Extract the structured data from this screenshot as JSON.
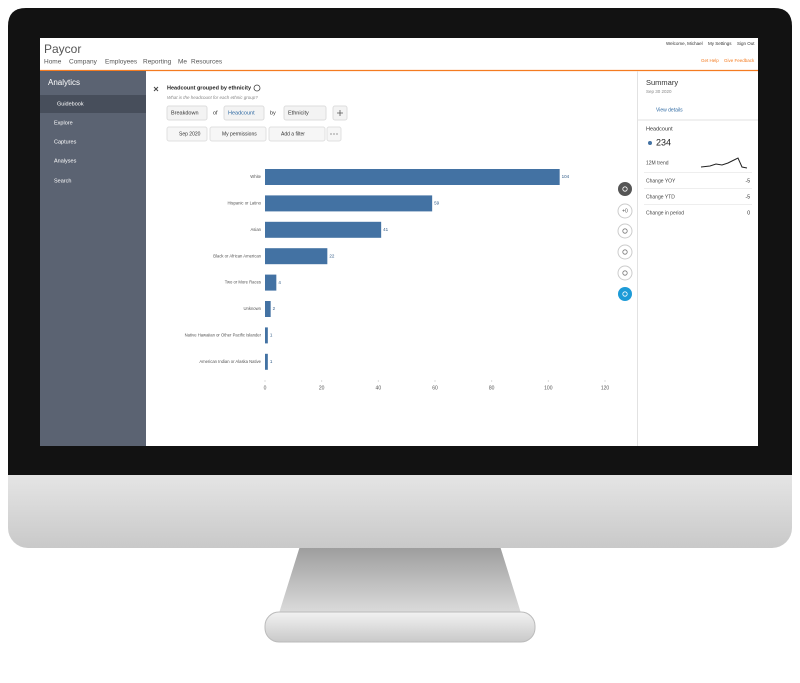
{
  "header": {
    "logo": "Paycor",
    "nav": [
      "Home",
      "Company",
      "Employees",
      "Reporting",
      "Me",
      "Resources"
    ],
    "user_links": [
      "Welcome, Michael",
      "My Settings",
      "Sign Out"
    ],
    "help_links": [
      "Get Help",
      "Give Feedback"
    ]
  },
  "sidebar": {
    "title": "Analytics",
    "items": [
      "Guidebook",
      "Explore",
      "Captures",
      "Analyses",
      "Search"
    ]
  },
  "query": {
    "title": "Headcount grouped by ethnicity",
    "subtitle": "What is the headcount for each ethnic group?",
    "tokens": [
      "Breakdown",
      "of",
      "Headcount",
      "by",
      "Ethnicity"
    ],
    "filters": [
      "Sep 2020",
      "My permissions",
      "Add a filter"
    ]
  },
  "toolbar": {
    "reset": "+0"
  },
  "chart_data": {
    "type": "barh",
    "categories": [
      "White",
      "Hispanic or Latino",
      "Asian",
      "Black or African American",
      "Two or More Races",
      "Unknown",
      "Native Hawaiian or Other Pacific Islander",
      "American Indian or Alaska Native"
    ],
    "values": [
      104,
      59,
      41,
      22,
      4,
      2,
      1,
      1
    ],
    "color": "#4372a3",
    "xlim": [
      0,
      120
    ],
    "xticks": [
      0,
      20,
      40,
      60,
      80,
      100,
      120
    ]
  },
  "summary": {
    "title": "Summary",
    "date": "Sep 30 2020",
    "link": "View details",
    "metric": "Headcount",
    "total": 234,
    "trend_label": "12M trend",
    "rows": [
      {
        "label": "Change YOY",
        "value": -5
      },
      {
        "label": "Change YTD",
        "value": -5
      },
      {
        "label": "Change in period",
        "value": 0
      }
    ]
  }
}
